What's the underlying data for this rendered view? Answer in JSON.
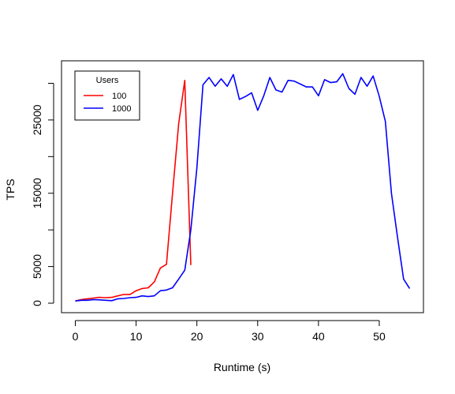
{
  "chart_data": {
    "type": "line",
    "title": "",
    "xlabel": "Runtime (s)",
    "ylabel": "TPS",
    "xlim": [
      0,
      55
    ],
    "ylim": [
      0,
      31000
    ],
    "xticks": [
      0,
      10,
      20,
      30,
      40,
      50
    ],
    "yticks": [
      0,
      5000,
      10000,
      15000,
      20000,
      25000,
      30000
    ],
    "ytick_labels": [
      "0",
      "5000",
      "",
      "15000",
      "",
      "25000",
      ""
    ],
    "grid": false,
    "legend": {
      "title": "Users",
      "placement": "top-left"
    },
    "series": [
      {
        "name": "100",
        "color": "#ff0000",
        "x": [
          0,
          1,
          2,
          3,
          4,
          5,
          6,
          7,
          8,
          9,
          10,
          11,
          12,
          13,
          14,
          15,
          16,
          17,
          18,
          19
        ],
        "y": [
          300,
          500,
          600,
          700,
          800,
          750,
          800,
          1000,
          1200,
          1200,
          1700,
          2000,
          2100,
          2900,
          4800,
          5300,
          15000,
          24500,
          30400,
          5200
        ]
      },
      {
        "name": "1000",
        "color": "#0000ff",
        "x": [
          0,
          1,
          2,
          3,
          4,
          5,
          6,
          7,
          8,
          9,
          10,
          11,
          12,
          13,
          14,
          15,
          16,
          17,
          18,
          19,
          20,
          21,
          22,
          23,
          24,
          25,
          26,
          27,
          28,
          29,
          30,
          31,
          32,
          33,
          34,
          35,
          36,
          37,
          38,
          39,
          40,
          41,
          42,
          43,
          44,
          45,
          46,
          47,
          48,
          49,
          50,
          51,
          52,
          53,
          54,
          55
        ],
        "y": [
          300,
          400,
          400,
          500,
          450,
          400,
          350,
          600,
          650,
          750,
          800,
          1000,
          900,
          1000,
          1700,
          1800,
          2100,
          3300,
          4500,
          10000,
          18500,
          29800,
          30800,
          29600,
          30600,
          29600,
          31200,
          27800,
          28200,
          28700,
          26300,
          28300,
          30800,
          29100,
          28800,
          30400,
          30300,
          29900,
          29500,
          29500,
          28300,
          30500,
          30100,
          30200,
          31300,
          29300,
          28500,
          30800,
          29600,
          31000,
          28200,
          24800,
          15000,
          9000,
          3300,
          2000
        ]
      }
    ]
  }
}
